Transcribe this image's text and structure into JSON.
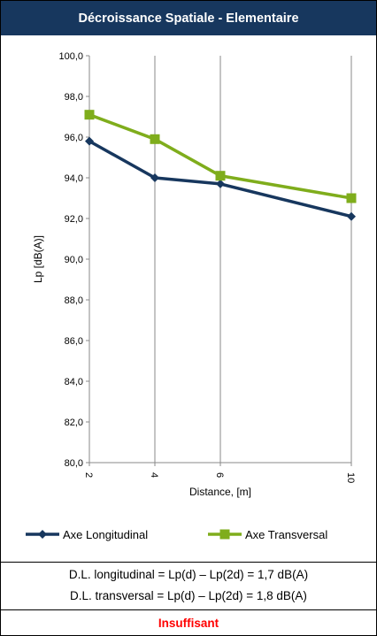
{
  "title": "Décroissance Spatiale - Elementaire",
  "chart_data": {
    "type": "line",
    "x": [
      2,
      4,
      6,
      10
    ],
    "x_tick_labels": [
      "2",
      "4",
      "6",
      "10"
    ],
    "series": [
      {
        "name": "Axe Longitudinal",
        "values": [
          95.8,
          94.0,
          93.7,
          92.1
        ],
        "color": "#17375e",
        "marker": "diamond"
      },
      {
        "name": "Axe Transversal",
        "values": [
          97.1,
          95.9,
          94.1,
          93.0
        ],
        "color": "#7fad1c",
        "marker": "square"
      }
    ],
    "xlabel": "Distance, [m]",
    "ylabel": "Lp [dB(A)]",
    "ylim": [
      80.0,
      100.0
    ],
    "y_ticks": [
      "80,0",
      "82,0",
      "84,0",
      "86,0",
      "88,0",
      "90,0",
      "92,0",
      "94,0",
      "96,0",
      "98,0",
      "100,0"
    ],
    "grid": "vertical",
    "legend": "bottom"
  },
  "formulas": {
    "longitudinal": "D.L. longitudinal = Lp(d) – Lp(2d) = 1,7 dB(A)",
    "transversal": "D.L. transversal = Lp(d) – Lp(2d) = 1,8 dB(A)"
  },
  "verdict": "Insuffisant"
}
